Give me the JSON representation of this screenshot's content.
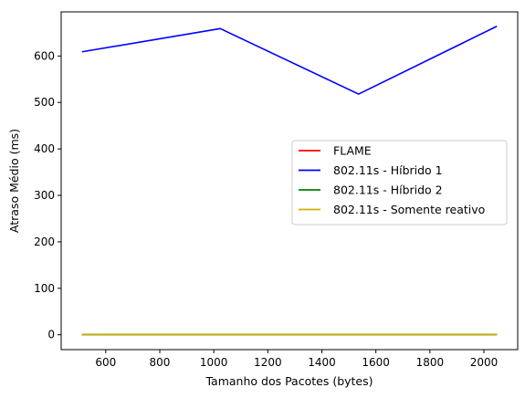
{
  "chart_data": {
    "type": "line",
    "xlabel": "Tamanho dos Pacotes (bytes)",
    "ylabel": "Atraso Médio (ms)",
    "xlim": [
      435,
      2125
    ],
    "ylim": [
      -32,
      695
    ],
    "xticks": [
      600,
      800,
      1000,
      1200,
      1400,
      1600,
      1800,
      2000
    ],
    "yticks": [
      0,
      100,
      200,
      300,
      400,
      500,
      600
    ],
    "x": [
      512,
      1024,
      1536,
      2048
    ],
    "series": [
      {
        "name": "FLAME",
        "color": "#ff0000",
        "values": [
          0.5,
          0.5,
          0.5,
          0.5
        ]
      },
      {
        "name": "802.11s - Híbrido 1",
        "color": "#0000ff",
        "values": [
          609,
          659,
          518,
          664
        ]
      },
      {
        "name": "802.11s - Híbrido 2",
        "color": "#008000",
        "values": [
          0.5,
          0.5,
          0.5,
          0.5
        ]
      },
      {
        "name": "802.11s - Somente reativo",
        "color": "#c8b400",
        "values": [
          0.5,
          0.5,
          0.5,
          0.5
        ]
      }
    ],
    "legend_position": "center-right",
    "grid": false
  }
}
